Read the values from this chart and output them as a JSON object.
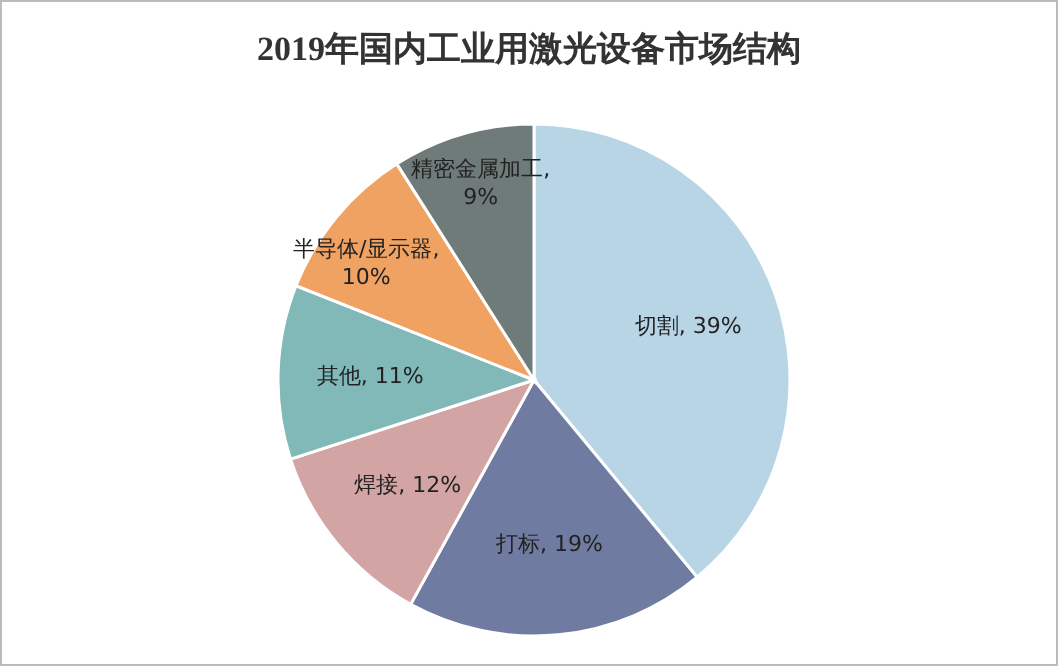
{
  "chart_data": {
    "type": "pie",
    "title": "2019年国内工业用激光设备市场结构",
    "categories": [
      "切割",
      "打标",
      "焊接",
      "其他",
      "半导体/显示器",
      "精密金属加工"
    ],
    "values": [
      39,
      19,
      12,
      11,
      10,
      9
    ],
    "colors": [
      "#b7d5e5",
      "#6f7ba0",
      "#d3a4a4",
      "#80b9b8",
      "#f0a262",
      "#6f7b79"
    ],
    "value_labels": [
      ", 39%",
      ", 19%",
      ", 12%",
      ", 11%",
      ",\n10%",
      ",\n9%"
    ]
  }
}
